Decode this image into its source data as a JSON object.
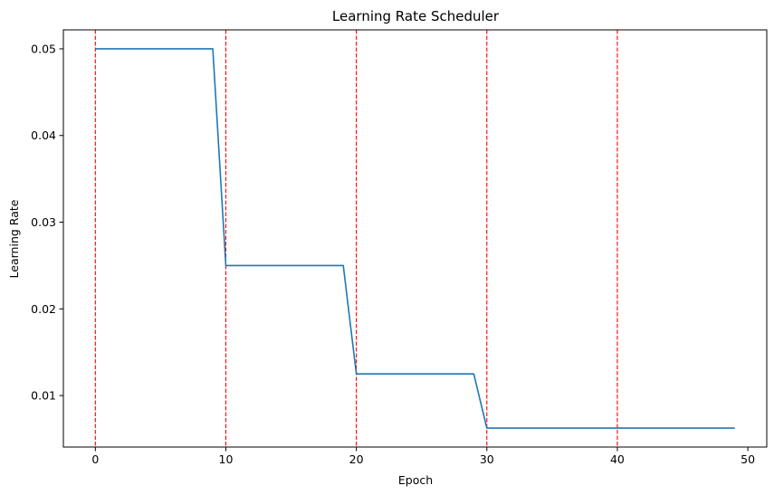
{
  "chart_data": {
    "type": "line",
    "title": "Learning Rate Scheduler",
    "xlabel": "Epoch",
    "ylabel": "Learning Rate",
    "xlim": [
      -2.45,
      51.45
    ],
    "ylim": [
      0.0040625,
      0.0521875
    ],
    "xticks": [
      0,
      10,
      20,
      30,
      40,
      50
    ],
    "xtick_labels": [
      "0",
      "10",
      "20",
      "30",
      "40",
      "50"
    ],
    "yticks": [
      0.01,
      0.02,
      0.03,
      0.04,
      0.05
    ],
    "ytick_labels": [
      "0.01",
      "0.02",
      "0.03",
      "0.04",
      "0.05"
    ],
    "grid": false,
    "series": [
      {
        "color": "#1f77b4",
        "x": [
          0,
          1,
          2,
          3,
          4,
          5,
          6,
          7,
          8,
          9,
          10,
          11,
          12,
          13,
          14,
          15,
          16,
          17,
          18,
          19,
          20,
          21,
          22,
          23,
          24,
          25,
          26,
          27,
          28,
          29,
          30,
          31,
          32,
          33,
          34,
          35,
          36,
          37,
          38,
          39,
          40,
          41,
          42,
          43,
          44,
          45,
          46,
          47,
          48,
          49
        ],
        "values": [
          0.05,
          0.05,
          0.05,
          0.05,
          0.05,
          0.05,
          0.05,
          0.05,
          0.05,
          0.05,
          0.025,
          0.025,
          0.025,
          0.025,
          0.025,
          0.025,
          0.025,
          0.025,
          0.025,
          0.025,
          0.0125,
          0.0125,
          0.0125,
          0.0125,
          0.0125,
          0.0125,
          0.0125,
          0.0125,
          0.0125,
          0.0125,
          0.00625,
          0.00625,
          0.00625,
          0.00625,
          0.00625,
          0.00625,
          0.00625,
          0.00625,
          0.00625,
          0.00625,
          0.00625,
          0.00625,
          0.00625,
          0.00625,
          0.00625,
          0.00625,
          0.00625,
          0.00625,
          0.00625,
          0.00625
        ]
      }
    ],
    "vertical_lines": {
      "x": [
        0,
        10,
        20,
        30,
        40
      ],
      "color": "#ff0000",
      "style": "dashed"
    }
  }
}
